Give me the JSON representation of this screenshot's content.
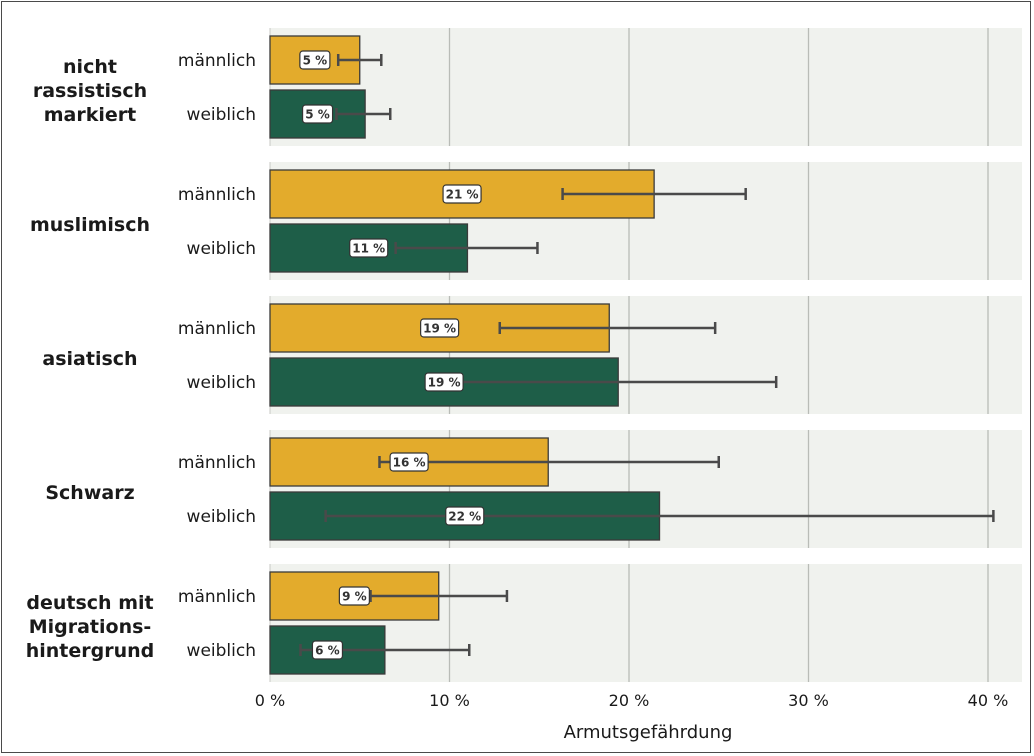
{
  "chart_data": {
    "type": "bar",
    "orientation": "horizontal",
    "xlabel": "Armutsgefährdung",
    "xlim": [
      0,
      42
    ],
    "xticks": [
      0,
      10,
      20,
      30,
      40
    ],
    "xtick_labels": [
      "0 %",
      "10 %",
      "20 %",
      "30 %",
      "40 %"
    ],
    "grid": true,
    "colors": {
      "männlich": "#e3ab2c",
      "weiblich": "#1e5e48",
      "panel": "#f0f2ee",
      "gridline": "#b9bcb7"
    },
    "groups": [
      {
        "label": "nicht rassistisch markiert",
        "label_lines": [
          "nicht",
          "rassistisch",
          "markiert"
        ],
        "bars": [
          {
            "sex": "männlich",
            "value": 5.0,
            "label": "5 %",
            "ci": [
              3.8,
              6.2
            ]
          },
          {
            "sex": "weiblich",
            "value": 5.3,
            "label": "5 %",
            "ci": [
              3.7,
              6.7
            ]
          }
        ]
      },
      {
        "label": "muslimisch",
        "label_lines": [
          "muslimisch"
        ],
        "bars": [
          {
            "sex": "männlich",
            "value": 21.4,
            "label": "21 %",
            "ci": [
              16.3,
              26.5
            ]
          },
          {
            "sex": "weiblich",
            "value": 11.0,
            "label": "11 %",
            "ci": [
              7.0,
              14.9
            ]
          }
        ]
      },
      {
        "label": "asiatisch",
        "label_lines": [
          "asiatisch"
        ],
        "bars": [
          {
            "sex": "männlich",
            "value": 18.9,
            "label": "19 %",
            "ci": [
              12.8,
              24.8
            ]
          },
          {
            "sex": "weiblich",
            "value": 19.4,
            "label": "19 %",
            "ci": [
              10.5,
              28.2
            ]
          }
        ]
      },
      {
        "label": "Schwarz",
        "label_lines": [
          "Schwarz"
        ],
        "bars": [
          {
            "sex": "männlich",
            "value": 15.5,
            "label": "16 %",
            "ci": [
              6.1,
              25.0
            ]
          },
          {
            "sex": "weiblich",
            "value": 21.7,
            "label": "22 %",
            "ci": [
              3.1,
              40.3
            ]
          }
        ]
      },
      {
        "label": "deutsch mit Migrationshintergrund",
        "label_lines": [
          "deutsch mit",
          "Migrations-",
          "hintergrund"
        ],
        "bars": [
          {
            "sex": "männlich",
            "value": 9.4,
            "label": "9 %",
            "ci": [
              5.6,
              13.2
            ]
          },
          {
            "sex": "weiblich",
            "value": 6.4,
            "label": "6 %",
            "ci": [
              1.7,
              11.1
            ]
          }
        ]
      }
    ]
  }
}
